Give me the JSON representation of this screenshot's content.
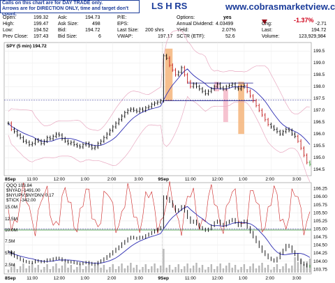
{
  "header": {
    "ticker": "LS H RS",
    "site": "www.cobrasmarketview.com",
    "notice_line1": "Calls on this chart are for DAY TRADE only.",
    "notice_line2": "Arrows are for DIRECTION ONLY, time and target don't count.",
    "change_pct": "-1.37%",
    "change_arrow": "down-triangle-icon"
  },
  "quote": {
    "open": {
      "label": "Open:",
      "value": "199.32"
    },
    "high": {
      "label": "High:",
      "value": "199.47"
    },
    "low": {
      "label": "Low:",
      "value": "194.52"
    },
    "prev_close": {
      "label": "Prev Close:",
      "value": "197.43"
    },
    "ask": {
      "label": "Ask:",
      "value": "194.73"
    },
    "ask_size": {
      "label": "Ask Size:",
      "value": "498"
    },
    "bid": {
      "label": "Bid:",
      "value": "194.72"
    },
    "bid_size": {
      "label": "Bid Size:",
      "value": "6"
    },
    "pe": {
      "label": "P/E:",
      "value": ""
    },
    "eps": {
      "label": "EPS:",
      "value": ""
    },
    "last_size": {
      "label": "Last Size:",
      "value": "200 shrs"
    },
    "vwap": {
      "label": "VWAP:",
      "value": "197.17"
    },
    "options": {
      "label": "Options:",
      "value": "yes"
    },
    "annual_dividend": {
      "label": "Annual Dividend:",
      "value": "4.03499"
    },
    "yield": {
      "label": "Yield:",
      "value": "2.07%"
    },
    "sctr": {
      "label": "SCTR (ETF):",
      "value": "52.6"
    },
    "chg": {
      "label": "Chg:",
      "value": "-2.71"
    },
    "last": {
      "label": "Last:",
      "value": "194.72"
    },
    "volume": {
      "label": "Volume:",
      "value": "123,929,984"
    }
  },
  "colors": {
    "accent": "#1b3c9a",
    "down": "#d0021b",
    "ma": "#2d2db3",
    "band": "#e8a8c0",
    "orange_bar": "#f5b47a",
    "pink_bar": "#f4b8c8",
    "red_line": "#cc2222"
  },
  "chart_data": [
    {
      "type": "bar",
      "title": "SPY (5 min) 194.72",
      "y_ticks": [
        "199.5",
        "199.0",
        "198.5",
        "198.0",
        "197.5",
        "197.0",
        "196.5",
        "196.0",
        "195.5",
        "195.0",
        "194.5"
      ],
      "ylim": [
        194.3,
        199.8
      ],
      "x_ticks": [
        "8Sep",
        "11:00",
        "12:00",
        "1:00",
        "2:00",
        "3:00",
        "9Sep",
        "11:00",
        "12:00",
        "1:00",
        "2:00",
        "3:00"
      ],
      "series": [
        {
          "values": [
            196.45,
            196.2,
            196.1,
            195.95,
            195.85,
            195.7,
            195.65,
            195.55,
            195.6,
            195.75,
            195.7,
            195.6,
            195.7,
            195.85,
            195.8,
            195.9,
            196.0,
            195.95,
            195.8,
            195.7,
            195.6,
            195.65,
            195.55,
            195.5,
            195.45,
            195.55,
            195.6,
            195.5,
            195.4,
            195.45,
            195.6,
            195.7,
            195.85,
            196.0,
            196.15,
            196.3,
            196.45,
            196.6,
            196.75,
            196.9,
            197.0,
            197.05,
            197.0,
            196.95,
            197.05,
            197.0,
            197.1,
            197.15,
            197.25,
            197.3,
            197.35,
            197.4,
            199.3,
            199.2,
            198.9,
            198.7,
            198.5,
            198.6,
            198.8,
            198.5,
            198.2,
            198.0,
            198.1,
            198.0,
            197.9,
            197.8,
            197.7,
            197.8,
            197.9,
            198.0,
            198.1,
            197.95,
            197.9,
            198.0,
            198.05,
            198.1,
            197.95,
            197.9,
            198.0,
            198.05,
            197.8,
            197.6,
            197.4,
            197.2,
            197.0,
            196.8,
            196.6,
            196.4,
            196.3,
            196.2,
            196.1,
            196.0,
            196.1,
            196.2,
            196.15,
            196.0,
            195.9,
            195.7,
            195.4,
            195.1,
            194.8,
            194.72
          ]
        }
      ]
    },
    {
      "type": "line",
      "title": "",
      "legend": [
        "QQQ 103.84",
        "$NYAD -1491.00",
        "$NYUPV:$NYDNV 0.17",
        "$TICK -342.00"
      ],
      "y_ticks_left": [
        "15.0M",
        "12.5M",
        "10.0M",
        "7.5M",
        "5.0M",
        "2.5M"
      ],
      "y_ticks_right": [
        "106.25",
        "106.00",
        "105.75",
        "105.50",
        "105.25",
        "105.00",
        "104.75",
        "104.50",
        "104.25",
        "104.00",
        "103.75"
      ],
      "ylim_right": [
        103.65,
        106.35
      ],
      "x_ticks": [
        "8Sep",
        "11:00",
        "12:00",
        "1:00",
        "2:00",
        "3:00",
        "9Sep",
        "11:00",
        "12:00",
        "1:00",
        "2:00",
        "3:00"
      ],
      "series": [
        {
          "name": "QQQ 103.84",
          "values": [
            104.3,
            104.2,
            104.15,
            104.1,
            104.05,
            104.0,
            103.98,
            103.95,
            103.97,
            104.02,
            104.0,
            103.98,
            104.0,
            104.05,
            104.03,
            104.08,
            104.1,
            104.08,
            104.03,
            104.0,
            103.97,
            103.98,
            103.95,
            103.93,
            103.92,
            103.95,
            103.97,
            103.94,
            103.9,
            103.92,
            103.97,
            104.02,
            104.08,
            104.15,
            104.22,
            104.3,
            104.38,
            104.45,
            104.55,
            104.62,
            104.7,
            104.75,
            104.72,
            104.7,
            104.75,
            104.73,
            104.8,
            104.85,
            104.9,
            104.95,
            105.0,
            105.05,
            106.0,
            105.95,
            105.85,
            105.7,
            105.55,
            105.6,
            105.7,
            105.55,
            105.35,
            105.2,
            105.25,
            105.15,
            105.05,
            105.0,
            104.95,
            105.0,
            105.1,
            105.2,
            105.25,
            105.15,
            105.1,
            105.2,
            105.25,
            105.3,
            105.2,
            105.1,
            105.2,
            105.25,
            105.05,
            104.9,
            104.75,
            104.6,
            104.45,
            104.3,
            104.2,
            104.1,
            104.05,
            104.0,
            104.1,
            104.25,
            104.35,
            104.5,
            104.45,
            104.3,
            104.2,
            104.05,
            103.95,
            103.9,
            103.85,
            103.84
          ]
        }
      ]
    }
  ]
}
